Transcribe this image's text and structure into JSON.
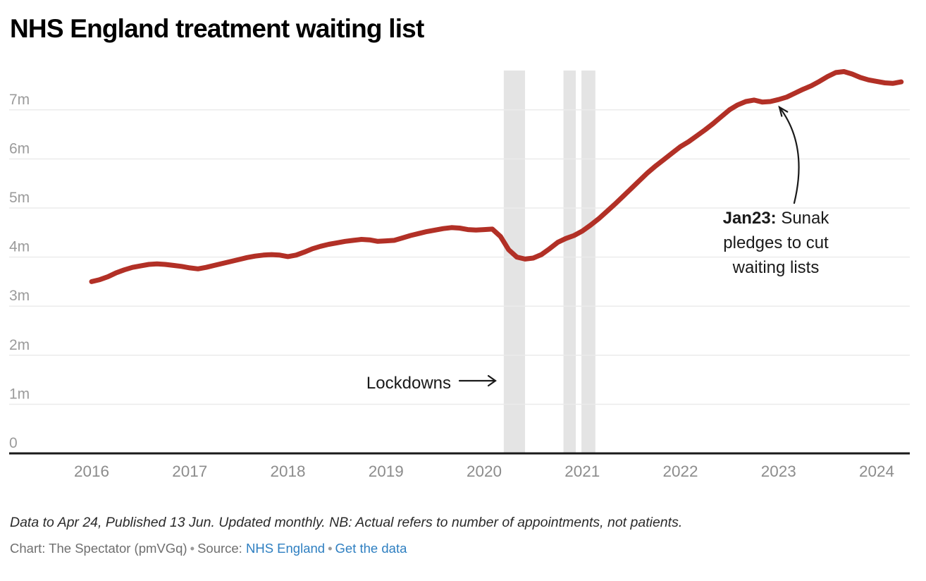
{
  "header": {
    "title": "NHS England treatment waiting list"
  },
  "chart_data": {
    "type": "line",
    "title": "NHS England treatment waiting list",
    "series_name": "Treatment waiting list (millions of appointments)",
    "frequency": "monthly",
    "x_start": "2016-01",
    "x_end": "2024-04",
    "ylim": [
      0,
      7.8
    ],
    "grid": true,
    "line_color": "#b23026",
    "band_color": "#e4e4e4",
    "grid_color": "#ebebeb",
    "axis_color": "#1a1a1a",
    "y_tick_color": "#9b9b9b",
    "x_tick_color": "#8c8c8c",
    "y_ticks": [
      {
        "value": 0,
        "label": "0"
      },
      {
        "value": 1,
        "label": "1m"
      },
      {
        "value": 2,
        "label": "2m"
      },
      {
        "value": 3,
        "label": "3m"
      },
      {
        "value": 4,
        "label": "4m"
      },
      {
        "value": 5,
        "label": "5m"
      },
      {
        "value": 6,
        "label": "6m"
      },
      {
        "value": 7,
        "label": "7m"
      }
    ],
    "x_ticks": [
      {
        "month_index": 0,
        "label": "2016"
      },
      {
        "month_index": 12,
        "label": "2017"
      },
      {
        "month_index": 24,
        "label": "2018"
      },
      {
        "month_index": 36,
        "label": "2019"
      },
      {
        "month_index": 48,
        "label": "2020"
      },
      {
        "month_index": 60,
        "label": "2021"
      },
      {
        "month_index": 72,
        "label": "2022"
      },
      {
        "month_index": 84,
        "label": "2023"
      },
      {
        "month_index": 96,
        "label": "2024"
      }
    ],
    "values": [
      3.5,
      3.54,
      3.6,
      3.68,
      3.74,
      3.79,
      3.82,
      3.85,
      3.86,
      3.85,
      3.83,
      3.81,
      3.78,
      3.76,
      3.79,
      3.83,
      3.87,
      3.91,
      3.95,
      3.99,
      4.02,
      4.04,
      4.05,
      4.04,
      4.01,
      4.04,
      4.1,
      4.17,
      4.22,
      4.26,
      4.29,
      4.32,
      4.34,
      4.36,
      4.35,
      4.32,
      4.33,
      4.34,
      4.39,
      4.44,
      4.48,
      4.52,
      4.55,
      4.58,
      4.6,
      4.59,
      4.56,
      4.55,
      4.56,
      4.57,
      4.42,
      4.15,
      4.0,
      3.96,
      3.98,
      4.05,
      4.17,
      4.3,
      4.38,
      4.44,
      4.53,
      4.65,
      4.78,
      4.93,
      5.08,
      5.24,
      5.4,
      5.56,
      5.72,
      5.86,
      5.99,
      6.12,
      6.25,
      6.35,
      6.47,
      6.59,
      6.72,
      6.86,
      7.0,
      7.1,
      7.17,
      7.2,
      7.16,
      7.17,
      7.21,
      7.26,
      7.34,
      7.42,
      7.49,
      7.58,
      7.68,
      7.76,
      7.78,
      7.73,
      7.66,
      7.61,
      7.58,
      7.55,
      7.54,
      7.57
    ],
    "lockdown_bands": [
      {
        "from_month": 50.4,
        "to_month": 53.0
      },
      {
        "from_month": 57.7,
        "to_month": 59.2
      },
      {
        "from_month": 59.9,
        "to_month": 61.6
      }
    ]
  },
  "annotations": {
    "lockdowns_label": "Lockdowns",
    "jan23_bold": "Jan23:",
    "jan23_text": " Sunak pledges to cut waiting lists"
  },
  "footer": {
    "note": "Data to Apr 24, Published 13 Jun. Updated monthly. NB: Actual refers to number of appointments, not patients.",
    "credit_prefix": "Chart: The Spectator (pmVGq)",
    "separator": "•",
    "source_label": "Source:",
    "source_link": "NHS England",
    "data_link": "Get the data",
    "link_color": "#2e7fc1"
  }
}
